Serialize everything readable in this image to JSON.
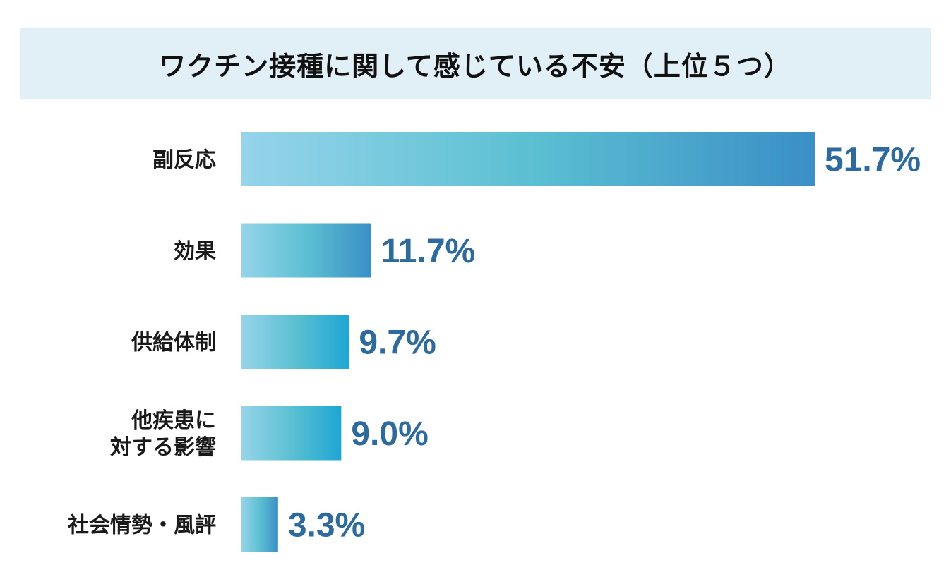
{
  "chart_data": {
    "type": "bar",
    "orientation": "horizontal",
    "title": "ワクチン接種に関して感じている不安（上位５つ）",
    "categories": [
      [
        "副反応"
      ],
      [
        "効果"
      ],
      [
        "供給体制"
      ],
      [
        "他疾患に",
        "対する影響"
      ],
      [
        "社会情勢・風評"
      ]
    ],
    "values": [
      51.7,
      11.7,
      9.7,
      9.0,
      3.3
    ],
    "value_labels": [
      "51.7%",
      "11.7%",
      "9.7%",
      "9.0%",
      "3.3%"
    ],
    "unit": "%",
    "xlim": [
      0,
      51.7
    ],
    "grid": false,
    "legend": "none",
    "colors": {
      "bar_light": "#96d4ea",
      "bar_mid": "#5cc0d2",
      "bar_dark_blue": "#3a8fc6",
      "bar_dark_cyan": "#1ea6d4",
      "value_text": "#2d6a9e",
      "title_band": "#e1f0f7"
    }
  }
}
